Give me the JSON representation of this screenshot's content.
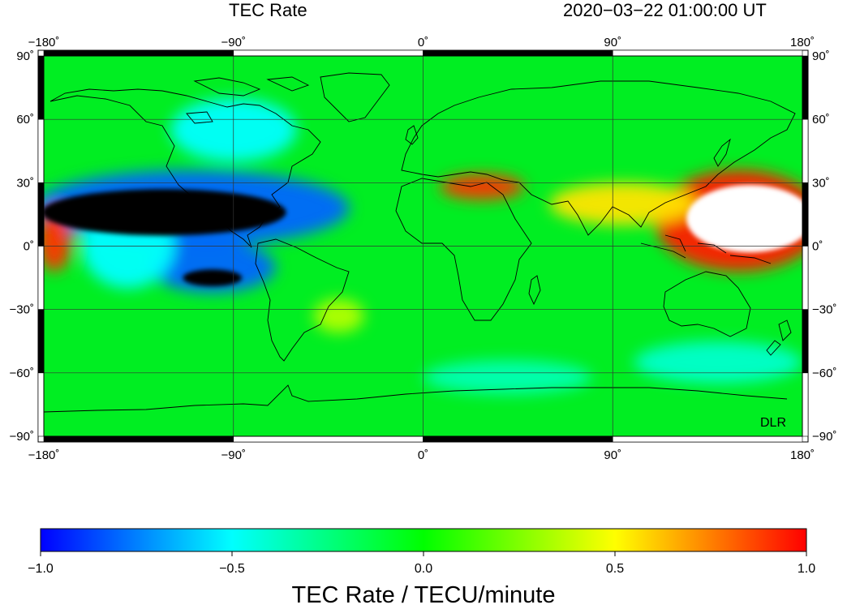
{
  "header": {
    "title": "TEC Rate",
    "timestamp": "2020−03−22  01:00:00 UT"
  },
  "map": {
    "projection": "equirectangular",
    "lon_range": [
      -180,
      180
    ],
    "lat_range": [
      -90,
      90
    ],
    "lon_ticks": [
      "−180˚",
      "−90˚",
      "0˚",
      "90˚",
      "180˚"
    ],
    "lat_ticks": [
      "90˚",
      "60˚",
      "30˚",
      "0˚",
      "−30˚",
      "−60˚",
      "−90˚"
    ],
    "credit": "DLR",
    "background_color": "#00ee22",
    "features": [
      {
        "kind": "low",
        "lon": -123,
        "lat": 16,
        "rlon": 58,
        "rlat": 11,
        "value": -1.3
      },
      {
        "kind": "low",
        "lon": -100,
        "lat": -15,
        "rlon": 14,
        "rlat": 4,
        "value": -1.3
      },
      {
        "kind": "low",
        "lon": -110,
        "lat": 18,
        "rlon": 75,
        "rlat": 18,
        "value": -0.8
      },
      {
        "kind": "low",
        "lon": -100,
        "lat": -10,
        "rlon": 30,
        "rlat": 12,
        "value": -0.8
      },
      {
        "kind": "low",
        "lon": -140,
        "lat": 0,
        "rlon": 22,
        "rlat": 20,
        "value": -0.5
      },
      {
        "kind": "low",
        "lon": -90,
        "lat": 55,
        "rlon": 30,
        "rlat": 15,
        "value": -0.5
      },
      {
        "kind": "low",
        "lon": 40,
        "lat": -62,
        "rlon": 40,
        "rlat": 8,
        "value": -0.35
      },
      {
        "kind": "low",
        "lon": 140,
        "lat": -55,
        "rlon": 40,
        "rlat": 10,
        "value": -0.4
      },
      {
        "kind": "high",
        "lon": 155,
        "lat": 13,
        "rlon": 30,
        "rlat": 16,
        "value": 1.3
      },
      {
        "kind": "high",
        "lon": 150,
        "lat": 12,
        "rlon": 40,
        "rlat": 24,
        "value": 0.95
      },
      {
        "kind": "high",
        "lon": -175,
        "lat": 3,
        "rlon": 8,
        "rlat": 15,
        "value": 0.9
      },
      {
        "kind": "high",
        "lon": 28,
        "lat": 28,
        "rlon": 20,
        "rlat": 6,
        "value": 0.9
      },
      {
        "kind": "high",
        "lon": 95,
        "lat": 20,
        "rlon": 35,
        "rlat": 10,
        "value": 0.55
      },
      {
        "kind": "high",
        "lon": -40,
        "lat": -33,
        "rlon": 12,
        "rlat": 8,
        "value": 0.35
      }
    ]
  },
  "colorbar": {
    "min": -1.0,
    "max": 1.0,
    "ticks": [
      "−1.0",
      "−0.5",
      "0.0",
      "0.5",
      "1.0"
    ],
    "label": "TEC Rate / TECU/minute",
    "colors": [
      "#0000ff",
      "#00ffff",
      "#00ff00",
      "#ffff00",
      "#ff0000"
    ],
    "under_color": "#000000",
    "over_color": "#ffffff"
  }
}
